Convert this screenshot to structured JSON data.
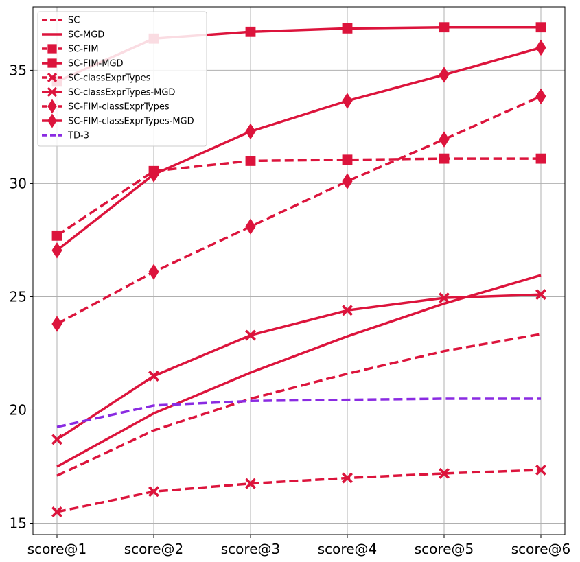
{
  "chart_data": {
    "type": "line",
    "title": "",
    "xlabel": "",
    "ylabel": "",
    "categories": [
      "score@1",
      "score@2",
      "score@3",
      "score@4",
      "score@5",
      "score@6"
    ],
    "ylim": [
      14.5,
      37.8
    ],
    "yticks": [
      15,
      20,
      25,
      30,
      35
    ],
    "grid": true,
    "legend_position": "top-left",
    "series": [
      {
        "name": "SC",
        "color": "#dc143c",
        "dash": "dashed",
        "marker": "none",
        "values": [
          17.1,
          19.1,
          20.5,
          21.6,
          22.6,
          23.35
        ]
      },
      {
        "name": "SC-MGD",
        "color": "#dc143c",
        "dash": "solid",
        "marker": "none",
        "values": [
          17.5,
          19.85,
          21.65,
          23.25,
          24.7,
          25.95
        ]
      },
      {
        "name": "SC-FIM",
        "color": "#dc143c",
        "dash": "dashed",
        "marker": "square",
        "values": [
          27.7,
          30.55,
          31.0,
          31.05,
          31.1,
          31.1
        ]
      },
      {
        "name": "SC-FIM-MGD",
        "color": "#dc143c",
        "dash": "solid",
        "marker": "square",
        "values": [
          34.5,
          36.4,
          36.7,
          36.85,
          36.9,
          36.9
        ]
      },
      {
        "name": "SC-classExprTypes",
        "color": "#dc143c",
        "dash": "dashed",
        "marker": "x",
        "values": [
          15.5,
          16.4,
          16.75,
          17.0,
          17.2,
          17.35
        ]
      },
      {
        "name": "SC-classExprTypes-MGD",
        "color": "#dc143c",
        "dash": "solid",
        "marker": "x",
        "values": [
          18.7,
          21.5,
          23.3,
          24.4,
          24.95,
          25.1
        ]
      },
      {
        "name": "SC-FIM-classExprTypes",
        "color": "#dc143c",
        "dash": "dashed",
        "marker": "diamond",
        "values": [
          23.8,
          26.1,
          28.1,
          30.1,
          31.95,
          33.85
        ]
      },
      {
        "name": "SC-FIM-classExprTypes-MGD",
        "color": "#dc143c",
        "dash": "solid",
        "marker": "diamond",
        "values": [
          27.05,
          30.4,
          32.3,
          33.65,
          34.8,
          36.0
        ]
      },
      {
        "name": "TD-3",
        "color": "#8a2be2",
        "dash": "dashed",
        "marker": "none",
        "values": [
          19.25,
          20.2,
          20.4,
          20.45,
          20.5,
          20.5
        ]
      }
    ]
  }
}
